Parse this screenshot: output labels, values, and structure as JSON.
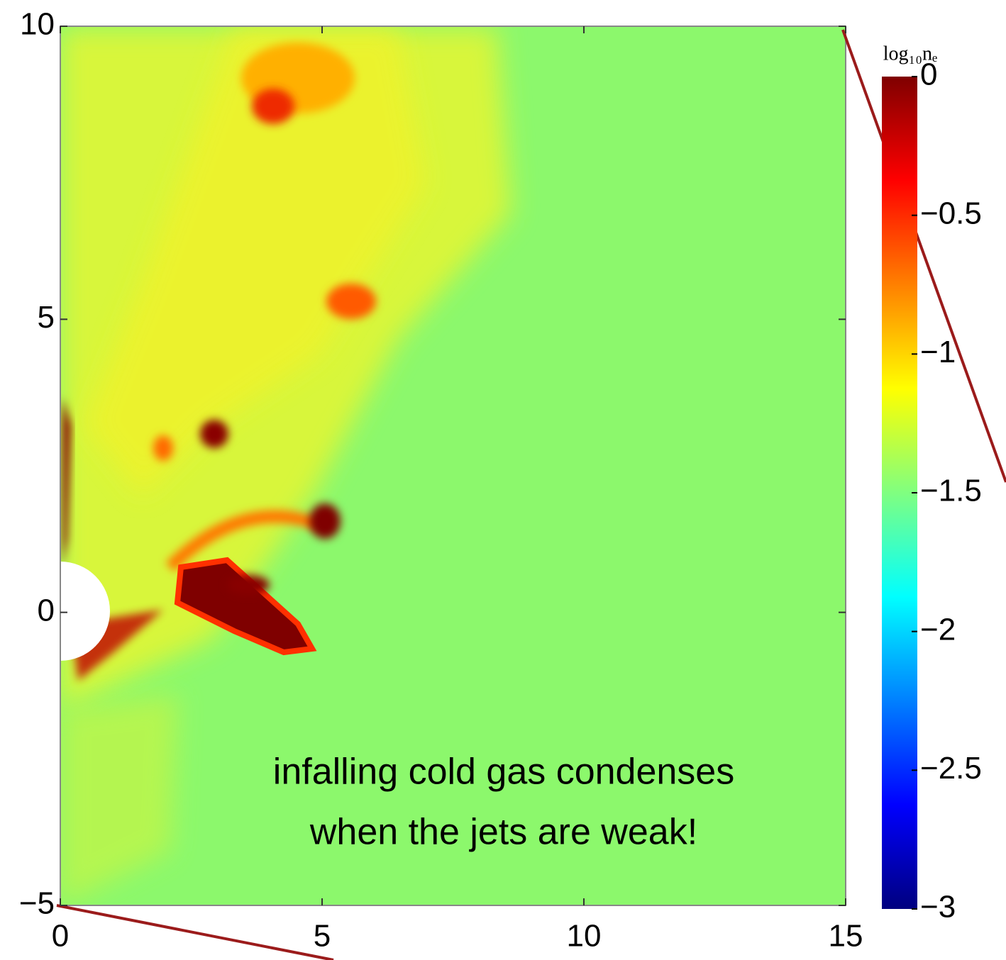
{
  "chart_data": {
    "type": "heatmap",
    "xlim": [
      0,
      15
    ],
    "ylim": [
      -5,
      10
    ],
    "xticks": [
      0,
      5,
      10,
      15
    ],
    "yticks": [
      {
        "value": -5,
        "label": "−5"
      },
      0,
      5,
      10
    ],
    "colorbar": {
      "label": "log₁₀nₑ",
      "lim": [
        -3,
        0
      ],
      "ticks": [
        0,
        {
          "value": -0.5,
          "label": "−0.5"
        },
        {
          "value": -1,
          "label": "−1"
        },
        {
          "value": -1.5,
          "label": "−1.5"
        },
        {
          "value": -2,
          "label": "−2"
        },
        {
          "value": -2.5,
          "label": "−2.5"
        },
        {
          "value": -3,
          "label": "−3"
        }
      ],
      "colormap": [
        "#00007f",
        "#0000ff",
        "#0080ff",
        "#00ffff",
        "#80ff80",
        "#ffff00",
        "#ff8000",
        "#ff0000",
        "#7f0000"
      ]
    },
    "annotation": [
      "infalling cold gas condenses",
      "when the jets are weak!"
    ]
  }
}
